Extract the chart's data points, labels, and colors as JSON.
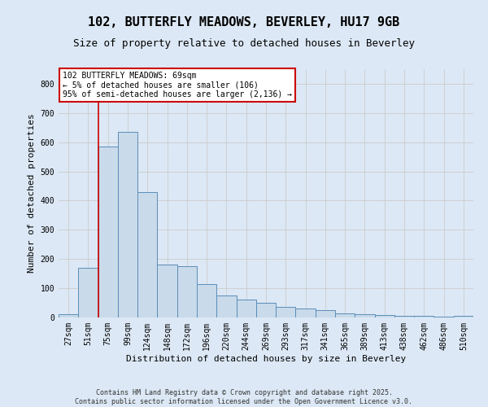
{
  "title_line1": "102, BUTTERFLY MEADOWS, BEVERLEY, HU17 9GB",
  "title_line2": "Size of property relative to detached houses in Beverley",
  "xlabel": "Distribution of detached houses by size in Beverley",
  "ylabel": "Number of detached properties",
  "categories": [
    "27sqm",
    "51sqm",
    "75sqm",
    "99sqm",
    "124sqm",
    "148sqm",
    "172sqm",
    "196sqm",
    "220sqm",
    "244sqm",
    "269sqm",
    "293sqm",
    "317sqm",
    "341sqm",
    "365sqm",
    "389sqm",
    "413sqm",
    "438sqm",
    "462sqm",
    "486sqm",
    "510sqm"
  ],
  "values": [
    10,
    170,
    585,
    635,
    430,
    180,
    175,
    115,
    75,
    60,
    50,
    35,
    30,
    25,
    15,
    12,
    8,
    6,
    5,
    3,
    5
  ],
  "bar_color": "#c9daea",
  "bar_edge_color": "#5b8db8",
  "vline_color": "#cc0000",
  "annotation_text": "102 BUTTERFLY MEADOWS: 69sqm\n← 5% of detached houses are smaller (106)\n95% of semi-detached houses are larger (2,136) →",
  "annotation_box_color": "#cc0000",
  "annotation_box_bg": "#ffffff",
  "ylim": [
    0,
    850
  ],
  "yticks": [
    0,
    100,
    200,
    300,
    400,
    500,
    600,
    700,
    800
  ],
  "grid_color": "#cccccc",
  "bg_color": "#dce8f5",
  "footer_text": "Contains HM Land Registry data © Crown copyright and database right 2025.\nContains public sector information licensed under the Open Government Licence v3.0.",
  "title_fontsize": 11,
  "subtitle_fontsize": 9,
  "axis_label_fontsize": 8,
  "tick_fontsize": 7,
  "annotation_fontsize": 7,
  "footer_fontsize": 6
}
